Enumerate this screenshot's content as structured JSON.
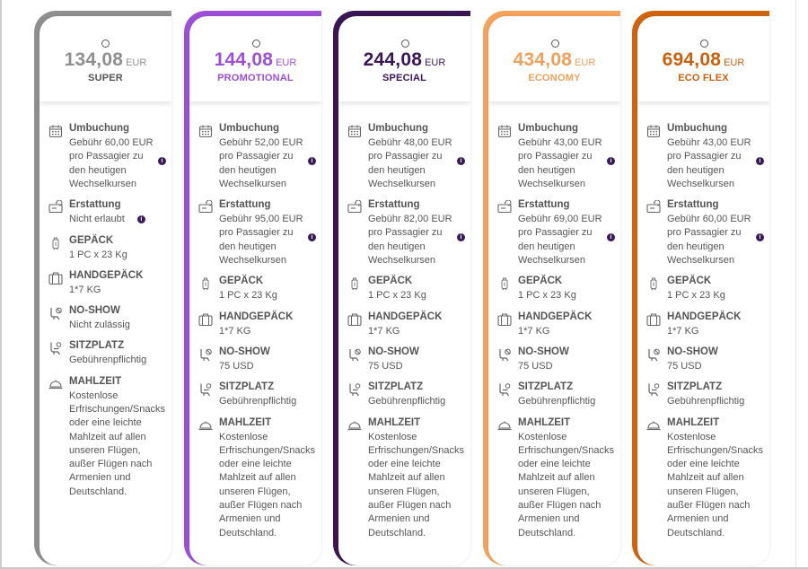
{
  "fares": [
    {
      "price": "134,08",
      "currency": "EUR",
      "name": "SUPER",
      "color": "#8f8f8f",
      "price_color": "#8f8f8f",
      "name_color": "#555555",
      "features": [
        {
          "icon": "calendar-icon",
          "title": "Umbuchung",
          "lines": [
            "Gebühr 60,00 EUR",
            "pro Passagier zu",
            "den heutigen",
            "Wechselkursen"
          ],
          "info": true
        },
        {
          "icon": "refund-icon",
          "title": "Erstattung",
          "lines": [
            "Nicht erlaubt"
          ],
          "info": true
        },
        {
          "icon": "luggage-icon",
          "title": "GEPÄCK",
          "lines": [
            "1 PC x 23 Kg"
          ],
          "info": false
        },
        {
          "icon": "hand-luggage-icon",
          "title": "HANDGEPÄCK",
          "lines": [
            "1*7 KG"
          ],
          "info": false
        },
        {
          "icon": "no-show-icon",
          "title": "NO-SHOW",
          "lines": [
            "Nicht zulässig"
          ],
          "info": false
        },
        {
          "icon": "seat-icon",
          "title": "SITZPLATZ",
          "lines": [
            "Gebührenpflichtig"
          ],
          "info": false
        },
        {
          "icon": "meal-icon",
          "title": "MAHLZEIT",
          "lines": [
            "Kostenlose",
            "Erfrischungen/Snacks",
            "oder eine leichte",
            "Mahlzeit auf allen",
            "unseren Flügen,",
            "außer Flügen nach",
            "Armenien und",
            "Deutschland."
          ],
          "info": false
        }
      ]
    },
    {
      "price": "144,08",
      "currency": "EUR",
      "name": "PROMOTIONAL",
      "color": "#9d4fd8",
      "price_color": "#9d4fd8",
      "name_color": "#9d4fd8",
      "features": [
        {
          "icon": "calendar-icon",
          "title": "Umbuchung",
          "lines": [
            "Gebühr 52,00 EUR",
            "pro Passagier zu",
            "den heutigen",
            "Wechselkursen"
          ],
          "info": true
        },
        {
          "icon": "refund-icon",
          "title": "Erstattung",
          "lines": [
            "Gebühr 95,00 EUR",
            "pro Passagier zu",
            "den heutigen",
            "Wechselkursen"
          ],
          "info": true
        },
        {
          "icon": "luggage-icon",
          "title": "GEPÄCK",
          "lines": [
            "1 PC x 23 Kg"
          ],
          "info": false
        },
        {
          "icon": "hand-luggage-icon",
          "title": "HANDGEPÄCK",
          "lines": [
            "1*7 KG"
          ],
          "info": false
        },
        {
          "icon": "no-show-icon",
          "title": "NO-SHOW",
          "lines": [
            "75 USD"
          ],
          "info": false
        },
        {
          "icon": "seat-icon",
          "title": "SITZPLATZ",
          "lines": [
            "Gebührenpflichtig"
          ],
          "info": false
        },
        {
          "icon": "meal-icon",
          "title": "MAHLZEIT",
          "lines": [
            "Kostenlose",
            "Erfrischungen/Snacks",
            "oder eine leichte",
            "Mahlzeit auf allen",
            "unseren Flügen,",
            "außer Flügen nach",
            "Armenien und",
            "Deutschland."
          ],
          "info": false
        }
      ]
    },
    {
      "price": "244,08",
      "currency": "EUR",
      "name": "SPECIAL",
      "color": "#3a1656",
      "price_color": "#3a1656",
      "name_color": "#3a1656",
      "features": [
        {
          "icon": "calendar-icon",
          "title": "Umbuchung",
          "lines": [
            "Gebühr 48,00 EUR",
            "pro Passagier zu",
            "den heutigen",
            "Wechselkursen"
          ],
          "info": true
        },
        {
          "icon": "refund-icon",
          "title": "Erstattung",
          "lines": [
            "Gebühr 82,00 EUR",
            "pro Passagier zu",
            "den heutigen",
            "Wechselkursen"
          ],
          "info": true
        },
        {
          "icon": "luggage-icon",
          "title": "GEPÄCK",
          "lines": [
            "1 PC x 23 Kg"
          ],
          "info": false
        },
        {
          "icon": "hand-luggage-icon",
          "title": "HANDGEPÄCK",
          "lines": [
            "1*7 KG"
          ],
          "info": false
        },
        {
          "icon": "no-show-icon",
          "title": "NO-SHOW",
          "lines": [
            "75 USD"
          ],
          "info": false
        },
        {
          "icon": "seat-icon",
          "title": "SITZPLATZ",
          "lines": [
            "Gebührenpflichtig"
          ],
          "info": false
        },
        {
          "icon": "meal-icon",
          "title": "MAHLZEIT",
          "lines": [
            "Kostenlose",
            "Erfrischungen/Snacks",
            "oder eine leichte",
            "Mahlzeit auf allen",
            "unseren Flügen,",
            "außer Flügen nach",
            "Armenien und",
            "Deutschland."
          ],
          "info": false
        }
      ]
    },
    {
      "price": "434,08",
      "currency": "EUR",
      "name": "ECONOMY",
      "color": "#f5a35c",
      "price_color": "#f0a05a",
      "name_color": "#f0a05a",
      "features": [
        {
          "icon": "calendar-icon",
          "title": "Umbuchung",
          "lines": [
            "Gebühr 43,00 EUR",
            "pro Passagier zu",
            "den heutigen",
            "Wechselkursen"
          ],
          "info": true
        },
        {
          "icon": "refund-icon",
          "title": "Erstattung",
          "lines": [
            "Gebühr 69,00 EUR",
            "pro Passagier zu",
            "den heutigen",
            "Wechselkursen"
          ],
          "info": true
        },
        {
          "icon": "luggage-icon",
          "title": "GEPÄCK",
          "lines": [
            "1 PC x 23 Kg"
          ],
          "info": false
        },
        {
          "icon": "hand-luggage-icon",
          "title": "HANDGEPÄCK",
          "lines": [
            "1*7 KG"
          ],
          "info": false
        },
        {
          "icon": "no-show-icon",
          "title": "NO-SHOW",
          "lines": [
            "75 USD"
          ],
          "info": false
        },
        {
          "icon": "seat-icon",
          "title": "SITZPLATZ",
          "lines": [
            "Gebührenpflichtig"
          ],
          "info": false
        },
        {
          "icon": "meal-icon",
          "title": "MAHLZEIT",
          "lines": [
            "Kostenlose",
            "Erfrischungen/Snacks",
            "oder eine leichte",
            "Mahlzeit auf allen",
            "unseren Flügen,",
            "außer Flügen nach",
            "Armenien und",
            "Deutschland."
          ],
          "info": false
        }
      ]
    },
    {
      "price": "694,08",
      "currency": "EUR",
      "name": "ECO FLEX",
      "color": "#d0640f",
      "price_color": "#c9600e",
      "name_color": "#c9600e",
      "features": [
        {
          "icon": "calendar-icon",
          "title": "Umbuchung",
          "lines": [
            "Gebühr 43,00 EUR",
            "pro Passagier zu",
            "den heutigen",
            "Wechselkursen"
          ],
          "info": true
        },
        {
          "icon": "refund-icon",
          "title": "Erstattung",
          "lines": [
            "Gebühr 60,00 EUR",
            "pro Passagier zu",
            "den heutigen",
            "Wechselkursen"
          ],
          "info": true
        },
        {
          "icon": "luggage-icon",
          "title": "GEPÄCK",
          "lines": [
            "1 PC x 23 Kg"
          ],
          "info": false
        },
        {
          "icon": "hand-luggage-icon",
          "title": "HANDGEPÄCK",
          "lines": [
            "1*7 KG"
          ],
          "info": false
        },
        {
          "icon": "no-show-icon",
          "title": "NO-SHOW",
          "lines": [
            "75 USD"
          ],
          "info": false
        },
        {
          "icon": "seat-icon",
          "title": "SITZPLATZ",
          "lines": [
            "Gebührenpflichtig"
          ],
          "info": false
        },
        {
          "icon": "meal-icon",
          "title": "MAHLZEIT",
          "lines": [
            "Kostenlose",
            "Erfrischungen/Snacks",
            "oder eine leichte",
            "Mahlzeit auf allen",
            "unseren Flügen,",
            "außer Flügen nach",
            "Armenien und",
            "Deutschland."
          ],
          "info": false
        }
      ]
    }
  ]
}
